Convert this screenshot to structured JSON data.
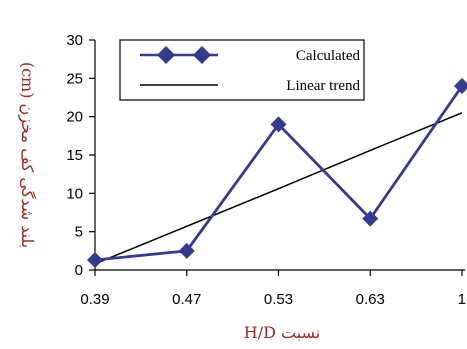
{
  "chart_data": {
    "type": "line",
    "xlabel": "نسبت H/D",
    "ylabel": "بلند شدگی کف مخزن (cm)",
    "categories": [
      "0.39",
      "0.47",
      "0.53",
      "0.63",
      "1"
    ],
    "ylim": [
      0,
      30
    ],
    "yticks": [
      0,
      5,
      10,
      15,
      20,
      25,
      30
    ],
    "grid": false,
    "legend_position": "top-right",
    "series": [
      {
        "name": "Calculated",
        "values": [
          1.3,
          2.5,
          19,
          6.7,
          24
        ],
        "color": "#343a8e",
        "marker": "diamond"
      },
      {
        "name": "Linear trend",
        "values": [
          0.8,
          5.7,
          10.6,
          15.6,
          20.5
        ],
        "color": "#000000",
        "marker": "none"
      }
    ],
    "axis_title_color": "#9c2b22"
  }
}
